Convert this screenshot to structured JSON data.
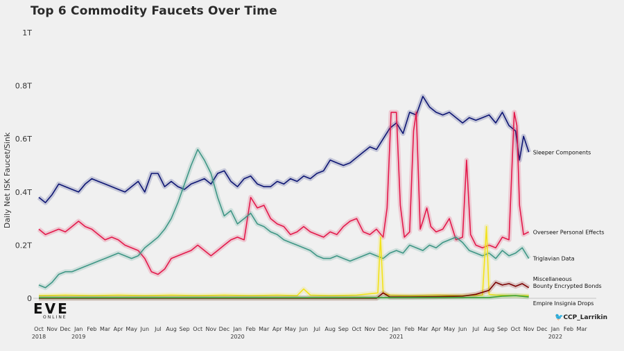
{
  "title": "Top 6 Commodity Faucets Over Time",
  "credit": "CCP_Larrikin",
  "logo": {
    "big": "EVE",
    "small": "ONLINE"
  },
  "chart_data": {
    "type": "line",
    "title": "Top 6 Commodity Faucets Over Time",
    "xlabel": "",
    "ylabel": "Daily Net ISK Faucet/Sink",
    "ylim": [
      0,
      1000000000000
    ],
    "yticks": [
      0,
      200000000000,
      400000000000,
      600000000000,
      800000000000,
      1000000000000
    ],
    "ytick_labels": [
      "0",
      "0.2T",
      "0.4T",
      "0.6T",
      "0.8T",
      "1T"
    ],
    "x_start": "2018-10",
    "x_months": [
      "Oct",
      "Nov",
      "Dec",
      "Jan",
      "Feb",
      "Mar",
      "Apr",
      "May",
      "Jun",
      "Jul",
      "Aug",
      "Sep",
      "Oct",
      "Nov",
      "Dec",
      "Jan",
      "Feb",
      "Mar",
      "Apr",
      "May",
      "Jun",
      "Jul",
      "Aug",
      "Sep",
      "Oct",
      "Nov",
      "Dec",
      "Jan",
      "Feb",
      "Mar",
      "Apr",
      "May",
      "Jun",
      "Jul",
      "Aug",
      "Sep",
      "Oct",
      "Nov",
      "Dec",
      "Jan",
      "Feb",
      "Mar"
    ],
    "x_years": [
      {
        "label": "2018",
        "month_index": 0
      },
      {
        "label": "2019",
        "month_index": 3
      },
      {
        "label": "2020",
        "month_index": 15
      },
      {
        "label": "2021",
        "month_index": 27
      },
      {
        "label": "2022",
        "month_index": 39
      }
    ],
    "grid": false,
    "legend": "direct labels at right end of lines",
    "series": [
      {
        "name": "Sleeper Components",
        "color": "#0d1573",
        "points": [
          [
            0.0,
            380
          ],
          [
            0.5,
            360
          ],
          [
            1.0,
            390
          ],
          [
            1.5,
            430
          ],
          [
            2.0,
            420
          ],
          [
            2.5,
            410
          ],
          [
            3.0,
            400
          ],
          [
            3.5,
            430
          ],
          [
            4.0,
            450
          ],
          [
            4.5,
            440
          ],
          [
            5.0,
            430
          ],
          [
            5.5,
            420
          ],
          [
            6.0,
            410
          ],
          [
            6.5,
            400
          ],
          [
            7.0,
            420
          ],
          [
            7.5,
            440
          ],
          [
            8.0,
            400
          ],
          [
            8.5,
            470
          ],
          [
            9.0,
            470
          ],
          [
            9.5,
            420
          ],
          [
            10.0,
            440
          ],
          [
            10.5,
            420
          ],
          [
            11.0,
            410
          ],
          [
            11.5,
            430
          ],
          [
            12.0,
            440
          ],
          [
            12.5,
            450
          ],
          [
            13.0,
            430
          ],
          [
            13.5,
            470
          ],
          [
            14.0,
            480
          ],
          [
            14.5,
            440
          ],
          [
            15.0,
            420
          ],
          [
            15.5,
            450
          ],
          [
            16.0,
            460
          ],
          [
            16.5,
            430
          ],
          [
            17.0,
            420
          ],
          [
            17.5,
            420
          ],
          [
            18.0,
            440
          ],
          [
            18.5,
            430
          ],
          [
            19.0,
            450
          ],
          [
            19.5,
            440
          ],
          [
            20.0,
            460
          ],
          [
            20.5,
            450
          ],
          [
            21.0,
            470
          ],
          [
            21.5,
            480
          ],
          [
            22.0,
            520
          ],
          [
            22.5,
            510
          ],
          [
            23.0,
            500
          ],
          [
            23.5,
            510
          ],
          [
            24.0,
            530
          ],
          [
            24.5,
            550
          ],
          [
            25.0,
            570
          ],
          [
            25.5,
            560
          ],
          [
            26.0,
            600
          ],
          [
            26.5,
            640
          ],
          [
            27.0,
            660
          ],
          [
            27.5,
            620
          ],
          [
            28.0,
            700
          ],
          [
            28.5,
            690
          ],
          [
            29.0,
            760
          ],
          [
            29.5,
            720
          ],
          [
            30.0,
            700
          ],
          [
            30.5,
            690
          ],
          [
            31.0,
            700
          ],
          [
            31.5,
            680
          ],
          [
            32.0,
            660
          ],
          [
            32.5,
            680
          ],
          [
            33.0,
            670
          ],
          [
            33.5,
            680
          ],
          [
            34.0,
            690
          ],
          [
            34.5,
            660
          ],
          [
            35.0,
            700
          ],
          [
            35.5,
            650
          ],
          [
            36.0,
            630
          ],
          [
            36.3,
            520
          ],
          [
            36.6,
            610
          ],
          [
            37.0,
            550
          ]
        ]
      },
      {
        "name": "Overseer Personal Effects",
        "color": "#e3194b",
        "points": [
          [
            0.0,
            260
          ],
          [
            0.5,
            240
          ],
          [
            1.0,
            250
          ],
          [
            1.5,
            260
          ],
          [
            2.0,
            250
          ],
          [
            2.5,
            270
          ],
          [
            3.0,
            290
          ],
          [
            3.5,
            270
          ],
          [
            4.0,
            260
          ],
          [
            4.5,
            240
          ],
          [
            5.0,
            220
          ],
          [
            5.5,
            230
          ],
          [
            6.0,
            220
          ],
          [
            6.5,
            200
          ],
          [
            7.0,
            190
          ],
          [
            7.5,
            180
          ],
          [
            8.0,
            150
          ],
          [
            8.5,
            100
          ],
          [
            9.0,
            90
          ],
          [
            9.5,
            110
          ],
          [
            10.0,
            150
          ],
          [
            10.5,
            160
          ],
          [
            11.0,
            170
          ],
          [
            11.5,
            180
          ],
          [
            12.0,
            200
          ],
          [
            12.5,
            180
          ],
          [
            13.0,
            160
          ],
          [
            13.5,
            180
          ],
          [
            14.0,
            200
          ],
          [
            14.5,
            220
          ],
          [
            15.0,
            230
          ],
          [
            15.5,
            220
          ],
          [
            16.0,
            380
          ],
          [
            16.5,
            340
          ],
          [
            17.0,
            350
          ],
          [
            17.5,
            300
          ],
          [
            18.0,
            280
          ],
          [
            18.5,
            270
          ],
          [
            19.0,
            240
          ],
          [
            19.5,
            250
          ],
          [
            20.0,
            270
          ],
          [
            20.5,
            250
          ],
          [
            21.0,
            240
          ],
          [
            21.5,
            230
          ],
          [
            22.0,
            250
          ],
          [
            22.5,
            240
          ],
          [
            23.0,
            270
          ],
          [
            23.5,
            290
          ],
          [
            24.0,
            300
          ],
          [
            24.5,
            250
          ],
          [
            25.0,
            240
          ],
          [
            25.5,
            260
          ],
          [
            26.0,
            230
          ],
          [
            26.3,
            340
          ],
          [
            26.6,
            700
          ],
          [
            27.0,
            700
          ],
          [
            27.3,
            350
          ],
          [
            27.6,
            230
          ],
          [
            28.0,
            250
          ],
          [
            28.3,
            630
          ],
          [
            28.5,
            700
          ],
          [
            28.8,
            260
          ],
          [
            29.0,
            290
          ],
          [
            29.3,
            340
          ],
          [
            29.6,
            270
          ],
          [
            30.0,
            250
          ],
          [
            30.5,
            260
          ],
          [
            31.0,
            300
          ],
          [
            31.5,
            220
          ],
          [
            32.0,
            230
          ],
          [
            32.3,
            520
          ],
          [
            32.6,
            240
          ],
          [
            33.0,
            200
          ],
          [
            33.5,
            190
          ],
          [
            34.0,
            200
          ],
          [
            34.5,
            190
          ],
          [
            35.0,
            230
          ],
          [
            35.5,
            220
          ],
          [
            35.9,
            700
          ],
          [
            36.1,
            650
          ],
          [
            36.3,
            350
          ],
          [
            36.6,
            240
          ],
          [
            37.0,
            250
          ]
        ]
      },
      {
        "name": "Triglavian Data",
        "color": "#3e9685",
        "points": [
          [
            0.0,
            50
          ],
          [
            0.5,
            40
          ],
          [
            1.0,
            60
          ],
          [
            1.5,
            90
          ],
          [
            2.0,
            100
          ],
          [
            2.5,
            100
          ],
          [
            3.0,
            110
          ],
          [
            3.5,
            120
          ],
          [
            4.0,
            130
          ],
          [
            4.5,
            140
          ],
          [
            5.0,
            150
          ],
          [
            5.5,
            160
          ],
          [
            6.0,
            170
          ],
          [
            6.5,
            160
          ],
          [
            7.0,
            150
          ],
          [
            7.5,
            160
          ],
          [
            8.0,
            190
          ],
          [
            8.5,
            210
          ],
          [
            9.0,
            230
          ],
          [
            9.5,
            260
          ],
          [
            10.0,
            300
          ],
          [
            10.5,
            360
          ],
          [
            11.0,
            430
          ],
          [
            11.5,
            500
          ],
          [
            12.0,
            560
          ],
          [
            12.5,
            520
          ],
          [
            13.0,
            470
          ],
          [
            13.5,
            380
          ],
          [
            14.0,
            310
          ],
          [
            14.5,
            330
          ],
          [
            15.0,
            280
          ],
          [
            15.5,
            300
          ],
          [
            16.0,
            320
          ],
          [
            16.5,
            280
          ],
          [
            17.0,
            270
          ],
          [
            17.5,
            250
          ],
          [
            18.0,
            240
          ],
          [
            18.5,
            220
          ],
          [
            19.0,
            210
          ],
          [
            19.5,
            200
          ],
          [
            20.0,
            190
          ],
          [
            20.5,
            180
          ],
          [
            21.0,
            160
          ],
          [
            21.5,
            150
          ],
          [
            22.0,
            150
          ],
          [
            22.5,
            160
          ],
          [
            23.0,
            150
          ],
          [
            23.5,
            140
          ],
          [
            24.0,
            150
          ],
          [
            24.5,
            160
          ],
          [
            25.0,
            170
          ],
          [
            25.5,
            160
          ],
          [
            26.0,
            150
          ],
          [
            26.5,
            170
          ],
          [
            27.0,
            180
          ],
          [
            27.5,
            170
          ],
          [
            28.0,
            200
          ],
          [
            28.5,
            190
          ],
          [
            29.0,
            180
          ],
          [
            29.5,
            200
          ],
          [
            30.0,
            190
          ],
          [
            30.5,
            210
          ],
          [
            31.0,
            220
          ],
          [
            31.5,
            230
          ],
          [
            32.0,
            210
          ],
          [
            32.5,
            180
          ],
          [
            33.0,
            170
          ],
          [
            33.5,
            160
          ],
          [
            34.0,
            170
          ],
          [
            34.5,
            150
          ],
          [
            35.0,
            180
          ],
          [
            35.5,
            160
          ],
          [
            36.0,
            170
          ],
          [
            36.5,
            190
          ],
          [
            37.0,
            150
          ]
        ]
      },
      {
        "name": "Miscellaneous",
        "color": "#f2e21b",
        "points": [
          [
            0.0,
            10
          ],
          [
            2.0,
            12
          ],
          [
            4.0,
            10
          ],
          [
            6.0,
            12
          ],
          [
            8.0,
            10
          ],
          [
            10.0,
            12
          ],
          [
            12.0,
            10
          ],
          [
            14.0,
            12
          ],
          [
            16.0,
            10
          ],
          [
            18.0,
            12
          ],
          [
            19.5,
            10
          ],
          [
            20.0,
            35
          ],
          [
            20.5,
            12
          ],
          [
            22.0,
            10
          ],
          [
            24.0,
            12
          ],
          [
            25.6,
            20
          ],
          [
            25.8,
            230
          ],
          [
            26.0,
            20
          ],
          [
            26.5,
            12
          ],
          [
            28.0,
            10
          ],
          [
            30.0,
            12
          ],
          [
            32.0,
            10
          ],
          [
            33.5,
            12
          ],
          [
            33.8,
            270
          ],
          [
            34.0,
            15
          ],
          [
            34.5,
            12
          ],
          [
            36.0,
            10
          ],
          [
            37.0,
            10
          ]
        ]
      },
      {
        "name": "Bounty Encrypted Bonds",
        "color": "#7a0000",
        "points": [
          [
            0.0,
            0
          ],
          [
            20.0,
            0
          ],
          [
            25.5,
            0
          ],
          [
            26.0,
            20
          ],
          [
            26.5,
            5
          ],
          [
            28.0,
            5
          ],
          [
            30.0,
            6
          ],
          [
            32.0,
            8
          ],
          [
            33.0,
            15
          ],
          [
            34.0,
            30
          ],
          [
            34.5,
            60
          ],
          [
            35.0,
            50
          ],
          [
            35.5,
            55
          ],
          [
            36.0,
            45
          ],
          [
            36.5,
            55
          ],
          [
            37.0,
            40
          ]
        ]
      },
      {
        "name": "Empire Insignia Drops",
        "color": "#3aa035",
        "points": [
          [
            0.0,
            2
          ],
          [
            10.0,
            2
          ],
          [
            20.0,
            2
          ],
          [
            30.0,
            3
          ],
          [
            34.0,
            3
          ],
          [
            35.0,
            8
          ],
          [
            36.0,
            10
          ],
          [
            37.0,
            5
          ]
        ]
      }
    ]
  }
}
